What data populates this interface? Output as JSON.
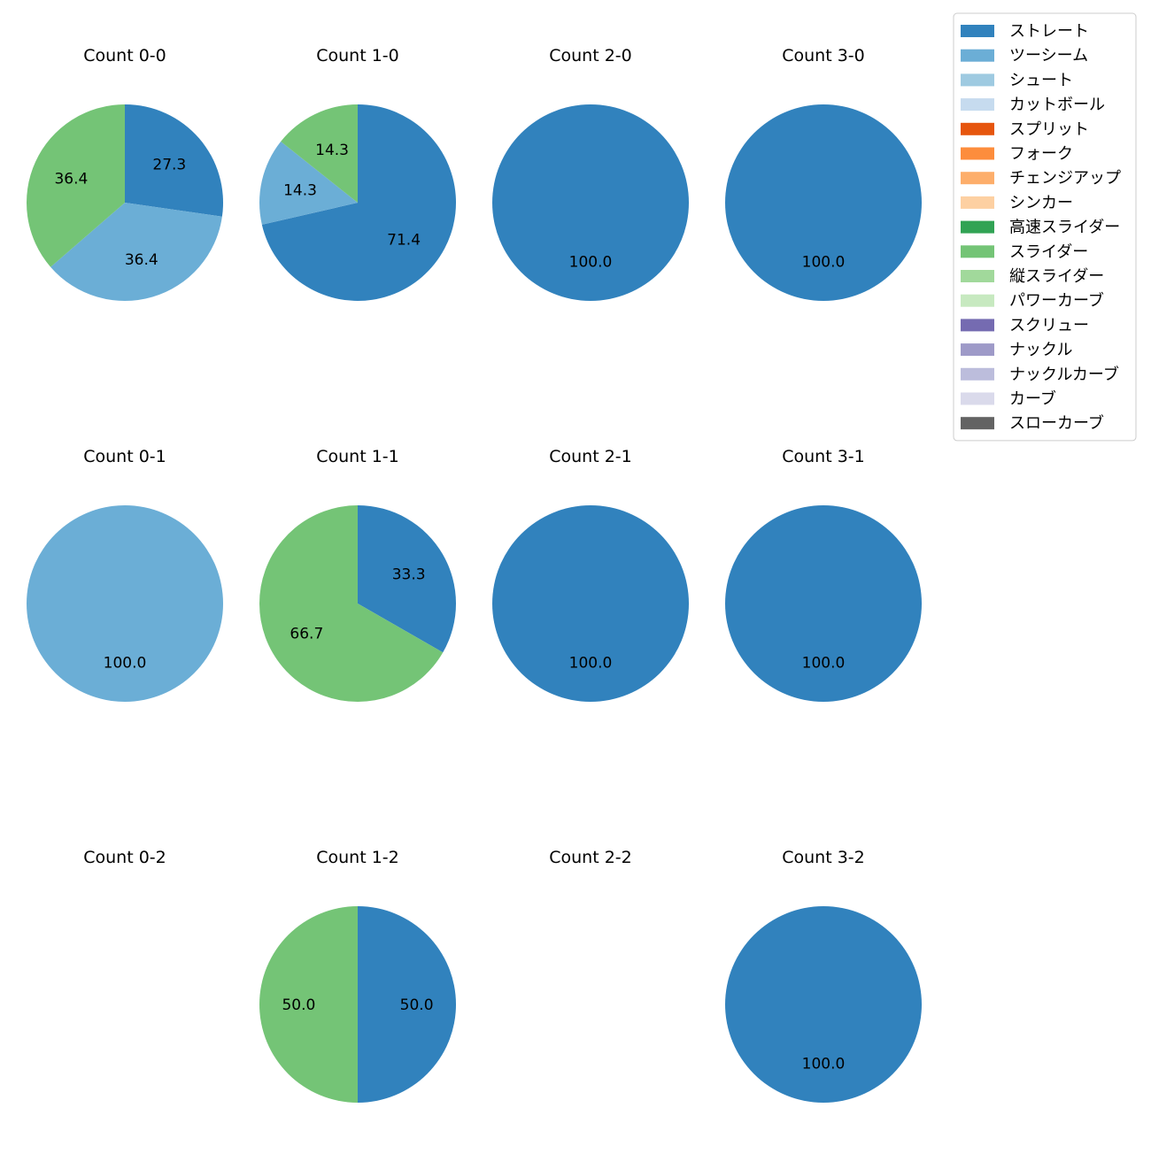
{
  "chart_data": {
    "type": "pie",
    "legend_position": "top-right",
    "legend": [
      {
        "name": "ストレート",
        "color": "#3182bd"
      },
      {
        "name": "ツーシーム",
        "color": "#6baed6"
      },
      {
        "name": "シュート",
        "color": "#9ecae1"
      },
      {
        "name": "カットボール",
        "color": "#c6dbef"
      },
      {
        "name": "スプリット",
        "color": "#e6550d"
      },
      {
        "name": "フォーク",
        "color": "#fd8d3c"
      },
      {
        "name": "チェンジアップ",
        "color": "#fdae6b"
      },
      {
        "name": "シンカー",
        "color": "#fdd0a2"
      },
      {
        "name": "高速スライダー",
        "color": "#31a354"
      },
      {
        "name": "スライダー",
        "color": "#74c476"
      },
      {
        "name": "縦スライダー",
        "color": "#a1d99b"
      },
      {
        "name": "パワーカーブ",
        "color": "#c7e9c0"
      },
      {
        "name": "スクリュー",
        "color": "#756bb1"
      },
      {
        "name": "ナックル",
        "color": "#9e9ac8"
      },
      {
        "name": "ナックルカーブ",
        "color": "#bcbddc"
      },
      {
        "name": "カーブ",
        "color": "#dadaeb"
      },
      {
        "name": "スローカーブ",
        "color": "#636363"
      }
    ],
    "pies": [
      {
        "title": "Count 0-0",
        "slices": [
          {
            "pitch": "ストレート",
            "value": 27.3,
            "label": "27.3"
          },
          {
            "pitch": "ツーシーム",
            "value": 36.4,
            "label": "36.4"
          },
          {
            "pitch": "スライダー",
            "value": 36.4,
            "label": "36.4"
          }
        ]
      },
      {
        "title": "Count 1-0",
        "slices": [
          {
            "pitch": "ストレート",
            "value": 71.4,
            "label": "71.4"
          },
          {
            "pitch": "ツーシーム",
            "value": 14.3,
            "label": "14.3"
          },
          {
            "pitch": "スライダー",
            "value": 14.3,
            "label": "14.3"
          }
        ]
      },
      {
        "title": "Count 2-0",
        "slices": [
          {
            "pitch": "ストレート",
            "value": 100.0,
            "label": "100.0"
          }
        ]
      },
      {
        "title": "Count 3-0",
        "slices": [
          {
            "pitch": "ストレート",
            "value": 100.0,
            "label": "100.0"
          }
        ]
      },
      {
        "title": "Count 0-1",
        "slices": [
          {
            "pitch": "ツーシーム",
            "value": 100.0,
            "label": "100.0"
          }
        ]
      },
      {
        "title": "Count 1-1",
        "slices": [
          {
            "pitch": "ストレート",
            "value": 33.3,
            "label": "33.3"
          },
          {
            "pitch": "スライダー",
            "value": 66.7,
            "label": "66.7"
          }
        ]
      },
      {
        "title": "Count 2-1",
        "slices": [
          {
            "pitch": "ストレート",
            "value": 100.0,
            "label": "100.0"
          }
        ]
      },
      {
        "title": "Count 3-1",
        "slices": [
          {
            "pitch": "ストレート",
            "value": 100.0,
            "label": "100.0"
          }
        ]
      },
      {
        "title": "Count 0-2",
        "slices": []
      },
      {
        "title": "Count 1-2",
        "slices": [
          {
            "pitch": "ストレート",
            "value": 50.0,
            "label": "50.0"
          },
          {
            "pitch": "スライダー",
            "value": 50.0,
            "label": "50.0"
          }
        ]
      },
      {
        "title": "Count 2-2",
        "slices": []
      },
      {
        "title": "Count 3-2",
        "slices": [
          {
            "pitch": "ストレート",
            "value": 100.0,
            "label": "100.0"
          }
        ]
      }
    ]
  }
}
